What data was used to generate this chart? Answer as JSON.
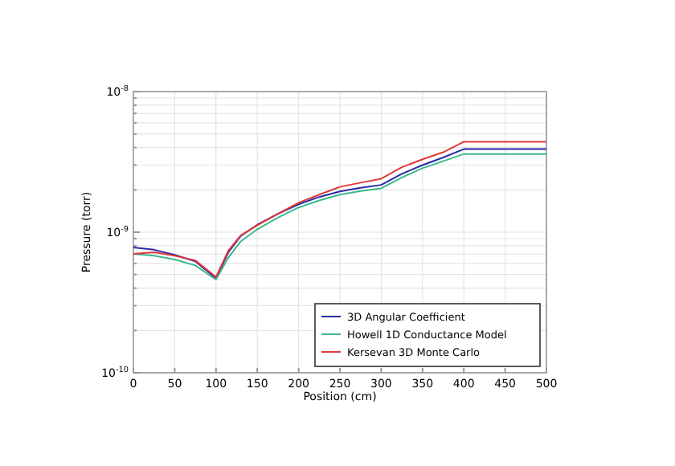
{
  "chart_data": {
    "type": "line",
    "xlabel": "Position (cm)",
    "ylabel": "Pressure (torr)",
    "log": "y",
    "grid": true,
    "legend": "bottom right",
    "line_style": "solid",
    "marker": "none",
    "xlim": [
      0,
      500
    ],
    "xticks": [
      0,
      50,
      100,
      150,
      200,
      250,
      300,
      350,
      400,
      450,
      500
    ],
    "ylim": [
      1e-10,
      1e-08
    ],
    "yticks": [
      {
        "value": 1e-10,
        "label": "10$^{-10}$"
      },
      {
        "value": 2e-10,
        "label": null
      },
      {
        "value": 3e-10,
        "label": null
      },
      {
        "value": 4e-10,
        "label": null
      },
      {
        "value": 5e-10,
        "label": null
      },
      {
        "value": 6e-10,
        "label": null
      },
      {
        "value": 7e-10,
        "label": null
      },
      {
        "value": 8e-10,
        "label": null
      },
      {
        "value": 9e-10,
        "label": null
      },
      {
        "value": 1e-09,
        "label": "10$^{-9}$"
      },
      {
        "value": 2e-09,
        "label": null
      },
      {
        "value": 3e-09,
        "label": null
      },
      {
        "value": 4e-09,
        "label": null
      },
      {
        "value": 5e-09,
        "label": null
      },
      {
        "value": 6e-09,
        "label": null
      },
      {
        "value": 7e-09,
        "label": null
      },
      {
        "value": 8e-09,
        "label": null
      },
      {
        "value": 9e-09,
        "label": null
      },
      {
        "value": 1e-08,
        "label": "10$^{-8}$"
      }
    ],
    "x": [
      0,
      25,
      50,
      75,
      100,
      115,
      130,
      150,
      175,
      200,
      225,
      250,
      275,
      300,
      325,
      350,
      375,
      400,
      450,
      500
    ],
    "series": [
      {
        "name": "3D Angular Coefficient",
        "color": "#2a2aa8",
        "values": [
          7.8e-10,
          7.5e-10,
          6.9e-10,
          6.2e-10,
          4.7e-10,
          7.2e-10,
          9.4e-10,
          1.13e-09,
          1.35e-09,
          1.58e-09,
          1.78e-09,
          1.95e-09,
          2.07e-09,
          2.17e-09,
          2.6e-09,
          3e-09,
          3.4e-09,
          3.9e-09,
          3.9e-09,
          3.9e-09
        ]
      },
      {
        "name": "Howell 1D Conductance Model",
        "color": "#3cb88c",
        "values": [
          7e-10,
          6.8e-10,
          6.4e-10,
          5.8e-10,
          4.6e-10,
          6.6e-10,
          8.6e-10,
          1.05e-09,
          1.27e-09,
          1.5e-09,
          1.68e-09,
          1.85e-09,
          1.96e-09,
          2.05e-09,
          2.45e-09,
          2.85e-09,
          3.2e-09,
          3.6e-09,
          3.6e-09,
          3.6e-09
        ]
      },
      {
        "name": "Kersevan 3D Monte Carlo",
        "color": "#e0383a",
        "values": [
          7e-10,
          7.2e-10,
          6.8e-10,
          6.3e-10,
          4.8e-10,
          7.4e-10,
          9.5e-10,
          1.12e-09,
          1.35e-09,
          1.62e-09,
          1.85e-09,
          2.1e-09,
          2.25e-09,
          2.4e-09,
          2.9e-09,
          3.3e-09,
          3.7e-09,
          4.4e-09,
          4.4e-09,
          4.4e-09
        ]
      }
    ]
  }
}
